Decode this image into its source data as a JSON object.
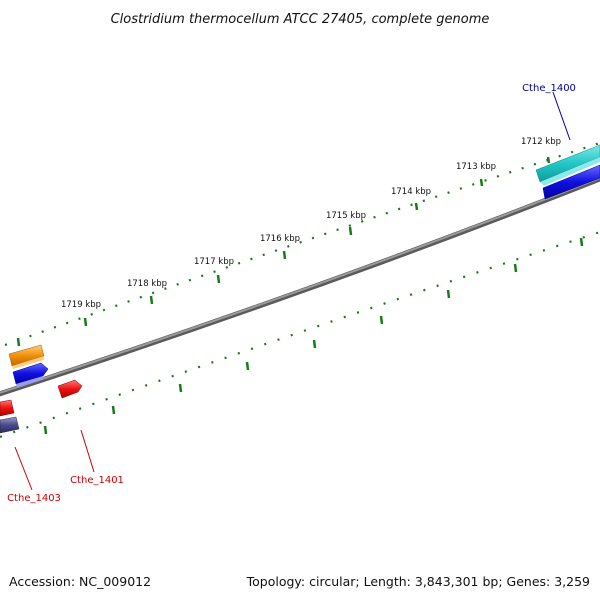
{
  "title": "Clostridium thermocellum ATCC 27405, complete genome",
  "footer": {
    "accession": "Accession: NC_009012",
    "summary": "Topology: circular; Length: 3,843,301 bp; Genes: 3,259"
  },
  "ticks": [
    "1712 kbp",
    "1713 kbp",
    "1714 kbp",
    "1715 kbp",
    "1716 kbp",
    "1717 kbp",
    "1718 kbp",
    "1719 kbp"
  ],
  "genes": [
    {
      "label": "Cthe_1400",
      "color": "#00008b"
    },
    {
      "label": "Cthe_1401",
      "color": "#cc0000"
    },
    {
      "label": "Cthe_1403",
      "color": "#cc0000"
    }
  ],
  "colors": {
    "backbone": "#808080",
    "tick": "#1a7a1a",
    "teal": "#22c7c7",
    "blue": "#1010e0",
    "orange": "#f0900a",
    "red": "#ee1111",
    "slate": "#4a4a8a"
  }
}
